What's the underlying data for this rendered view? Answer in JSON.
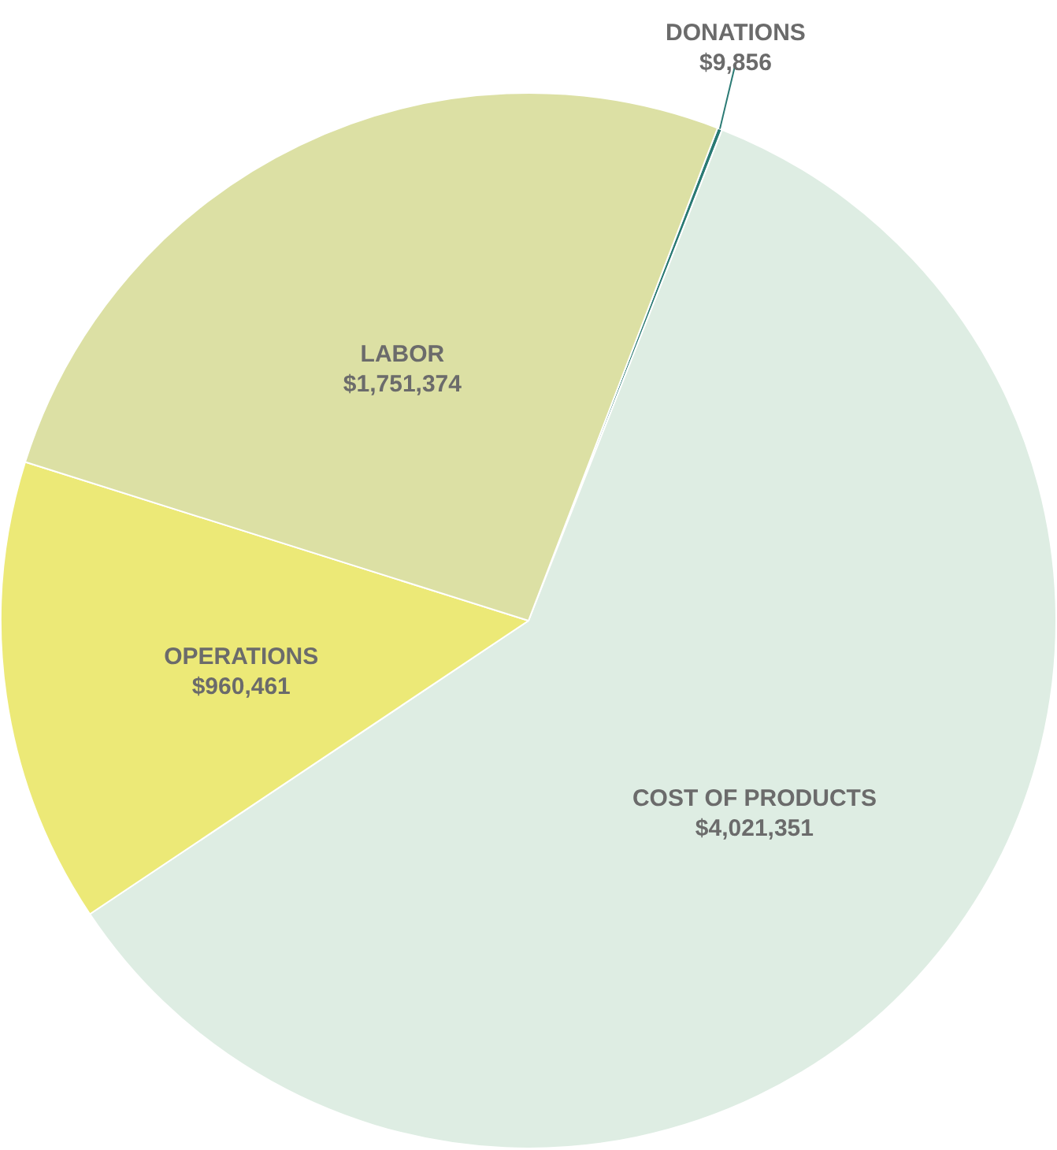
{
  "chart_data": {
    "type": "pie",
    "categories": [
      "DONATIONS",
      "COST OF PRODUCTS",
      "OPERATIONS",
      "LABOR"
    ],
    "values": [
      9856,
      4021351,
      960461,
      1751374
    ],
    "value_labels": [
      "$9,856",
      "$4,021,351",
      "$960,461",
      "$1,751,374"
    ],
    "colors": [
      "#2a7a74",
      "#deede3",
      "#ece977",
      "#dce0a4"
    ],
    "legend": false
  }
}
